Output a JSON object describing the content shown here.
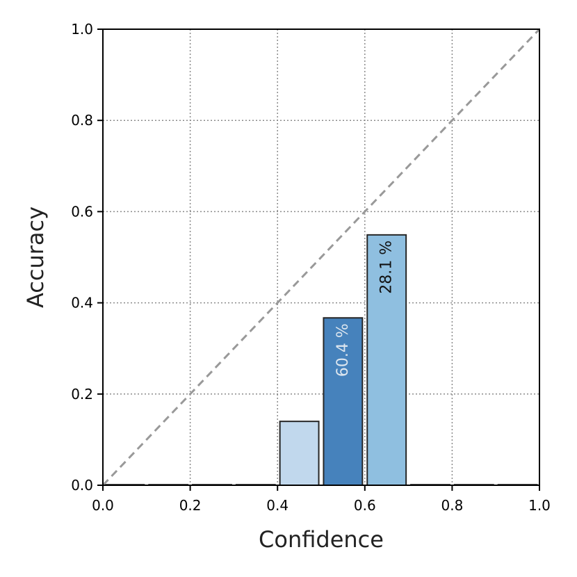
{
  "chart_data": {
    "type": "bar",
    "xlabel": "Confidence",
    "ylabel": "Accuracy",
    "xlim": [
      0.0,
      1.0
    ],
    "ylim": [
      0.0,
      1.0
    ],
    "x_ticks": [
      "0.0",
      "0.2",
      "0.4",
      "0.6",
      "0.8",
      "1.0"
    ],
    "y_ticks": [
      "0.0",
      "0.2",
      "0.4",
      "0.6",
      "0.8",
      "1.0"
    ],
    "grid": true,
    "reference_line": {
      "from": [
        0.0,
        0.0
      ],
      "to": [
        1.0,
        1.0
      ],
      "style": "dashed",
      "color": "#999999"
    },
    "bins": [
      {
        "x_start": 0.0,
        "x_end": 0.1,
        "accuracy": 0.0,
        "fill": "#dcebf7",
        "label": ""
      },
      {
        "x_start": 0.1,
        "x_end": 0.2,
        "accuracy": 0.0,
        "fill": "#dcebf7",
        "label": ""
      },
      {
        "x_start": 0.2,
        "x_end": 0.3,
        "accuracy": 0.0,
        "fill": "#dcebf7",
        "label": ""
      },
      {
        "x_start": 0.3,
        "x_end": 0.4,
        "accuracy": 0.0,
        "fill": "#dcebf7",
        "label": ""
      },
      {
        "x_start": 0.4,
        "x_end": 0.5,
        "accuracy": 0.14,
        "fill": "#c1d8ed",
        "label": ""
      },
      {
        "x_start": 0.5,
        "x_end": 0.6,
        "accuracy": 0.367,
        "fill": "#4682bc",
        "label": "60.4 %",
        "label_color": "#dde6ef"
      },
      {
        "x_start": 0.6,
        "x_end": 0.7,
        "accuracy": 0.549,
        "fill": "#8fbfe0",
        "label": "28.1 %",
        "label_color": "#111111"
      },
      {
        "x_start": 0.7,
        "x_end": 0.8,
        "accuracy": 0.0,
        "fill": "#dcebf7",
        "label": ""
      },
      {
        "x_start": 0.8,
        "x_end": 0.9,
        "accuracy": 0.0,
        "fill": "#dcebf7",
        "label": ""
      },
      {
        "x_start": 0.9,
        "x_end": 1.0,
        "accuracy": 0.0,
        "fill": "#dcebf7",
        "label": ""
      }
    ]
  }
}
